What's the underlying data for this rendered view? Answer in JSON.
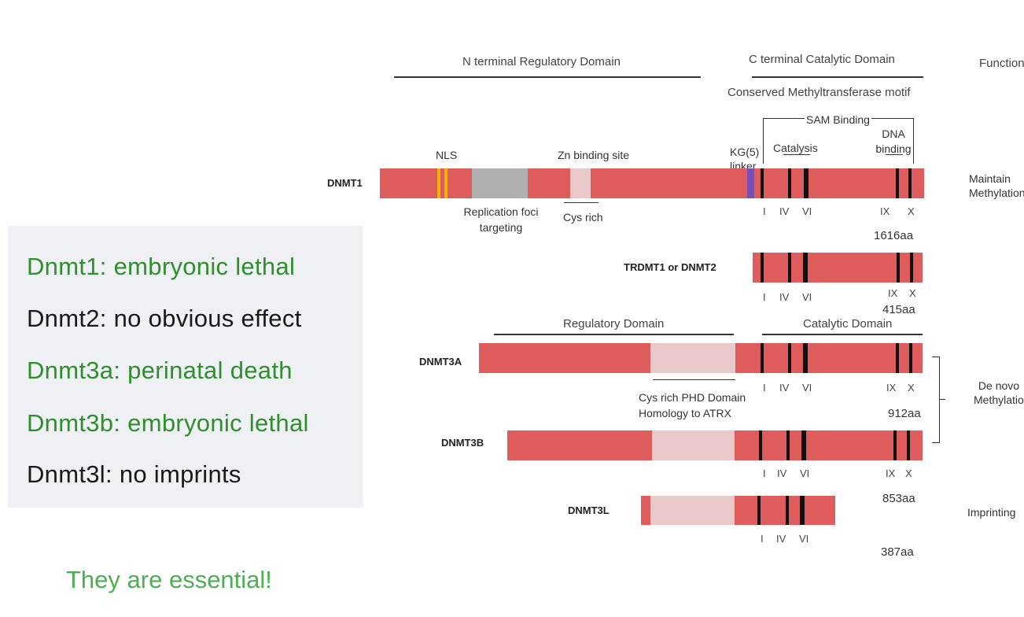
{
  "diagram": {
    "headers": {
      "n_terminal": "N terminal Regulatory Domain",
      "c_terminal": "C terminal Catalytic Domain",
      "function": "Function",
      "conserved_motif": "Conserved Methyltransferase motif",
      "sam_binding": "SAM Binding",
      "dna_binding": "DNA binding",
      "catalysis": "Catalysis",
      "regulatory_domain": "Regulatory Domain",
      "catalytic_domain": "Catalytic Domain"
    },
    "features": {
      "nls": "NLS",
      "zn_binding": "Zn binding site",
      "kg_linker": "KG(5) linker",
      "replication_foci": "Replication foci targeting",
      "cys_rich": "Cys rich",
      "cys_rich_phd": "Cys rich PHD Domain Homology to ATRX"
    },
    "proteins": [
      {
        "name": "DNMT1",
        "length": "1616aa",
        "motifs": [
          "I",
          "IV",
          "VI",
          "IX",
          "X"
        ],
        "function": "Maintain Methylation"
      },
      {
        "name": "TRDMT1 or DNMT2",
        "length": "415aa",
        "motifs": [
          "I",
          "IV",
          "VI",
          "IX",
          "X"
        ]
      },
      {
        "name": "DNMT3A",
        "length": "912aa",
        "motifs": [
          "I",
          "IV",
          "VI",
          "IX",
          "X"
        ],
        "function": "De novo Methylation"
      },
      {
        "name": "DNMT3B",
        "length": "853aa",
        "motifs": [
          "I",
          "IV",
          "VI",
          "IX",
          "X"
        ]
      },
      {
        "name": "DNMT3L",
        "length": "387aa",
        "motifs": [
          "I",
          "IV",
          "VI"
        ],
        "function": "Imprinting"
      }
    ],
    "colors": {
      "domain": "#de5c5c",
      "regulatory_light": "#e8c8c8",
      "replication": "#b0b0b0",
      "nls": "#f0b400",
      "linker": "#7a4fb0",
      "motif": "#111111"
    }
  },
  "phenotypes": [
    {
      "text": "Dnmt1: embryonic lethal",
      "color": "green"
    },
    {
      "text": "Dnmt2: no obvious effect",
      "color": "black"
    },
    {
      "text": "Dnmt3a: perinatal death",
      "color": "green"
    },
    {
      "text": "Dnmt3b: embryonic lethal",
      "color": "green"
    },
    {
      "text": "Dnmt3l: no imprints",
      "color": "black"
    }
  ],
  "conclusion": "They are essential!"
}
